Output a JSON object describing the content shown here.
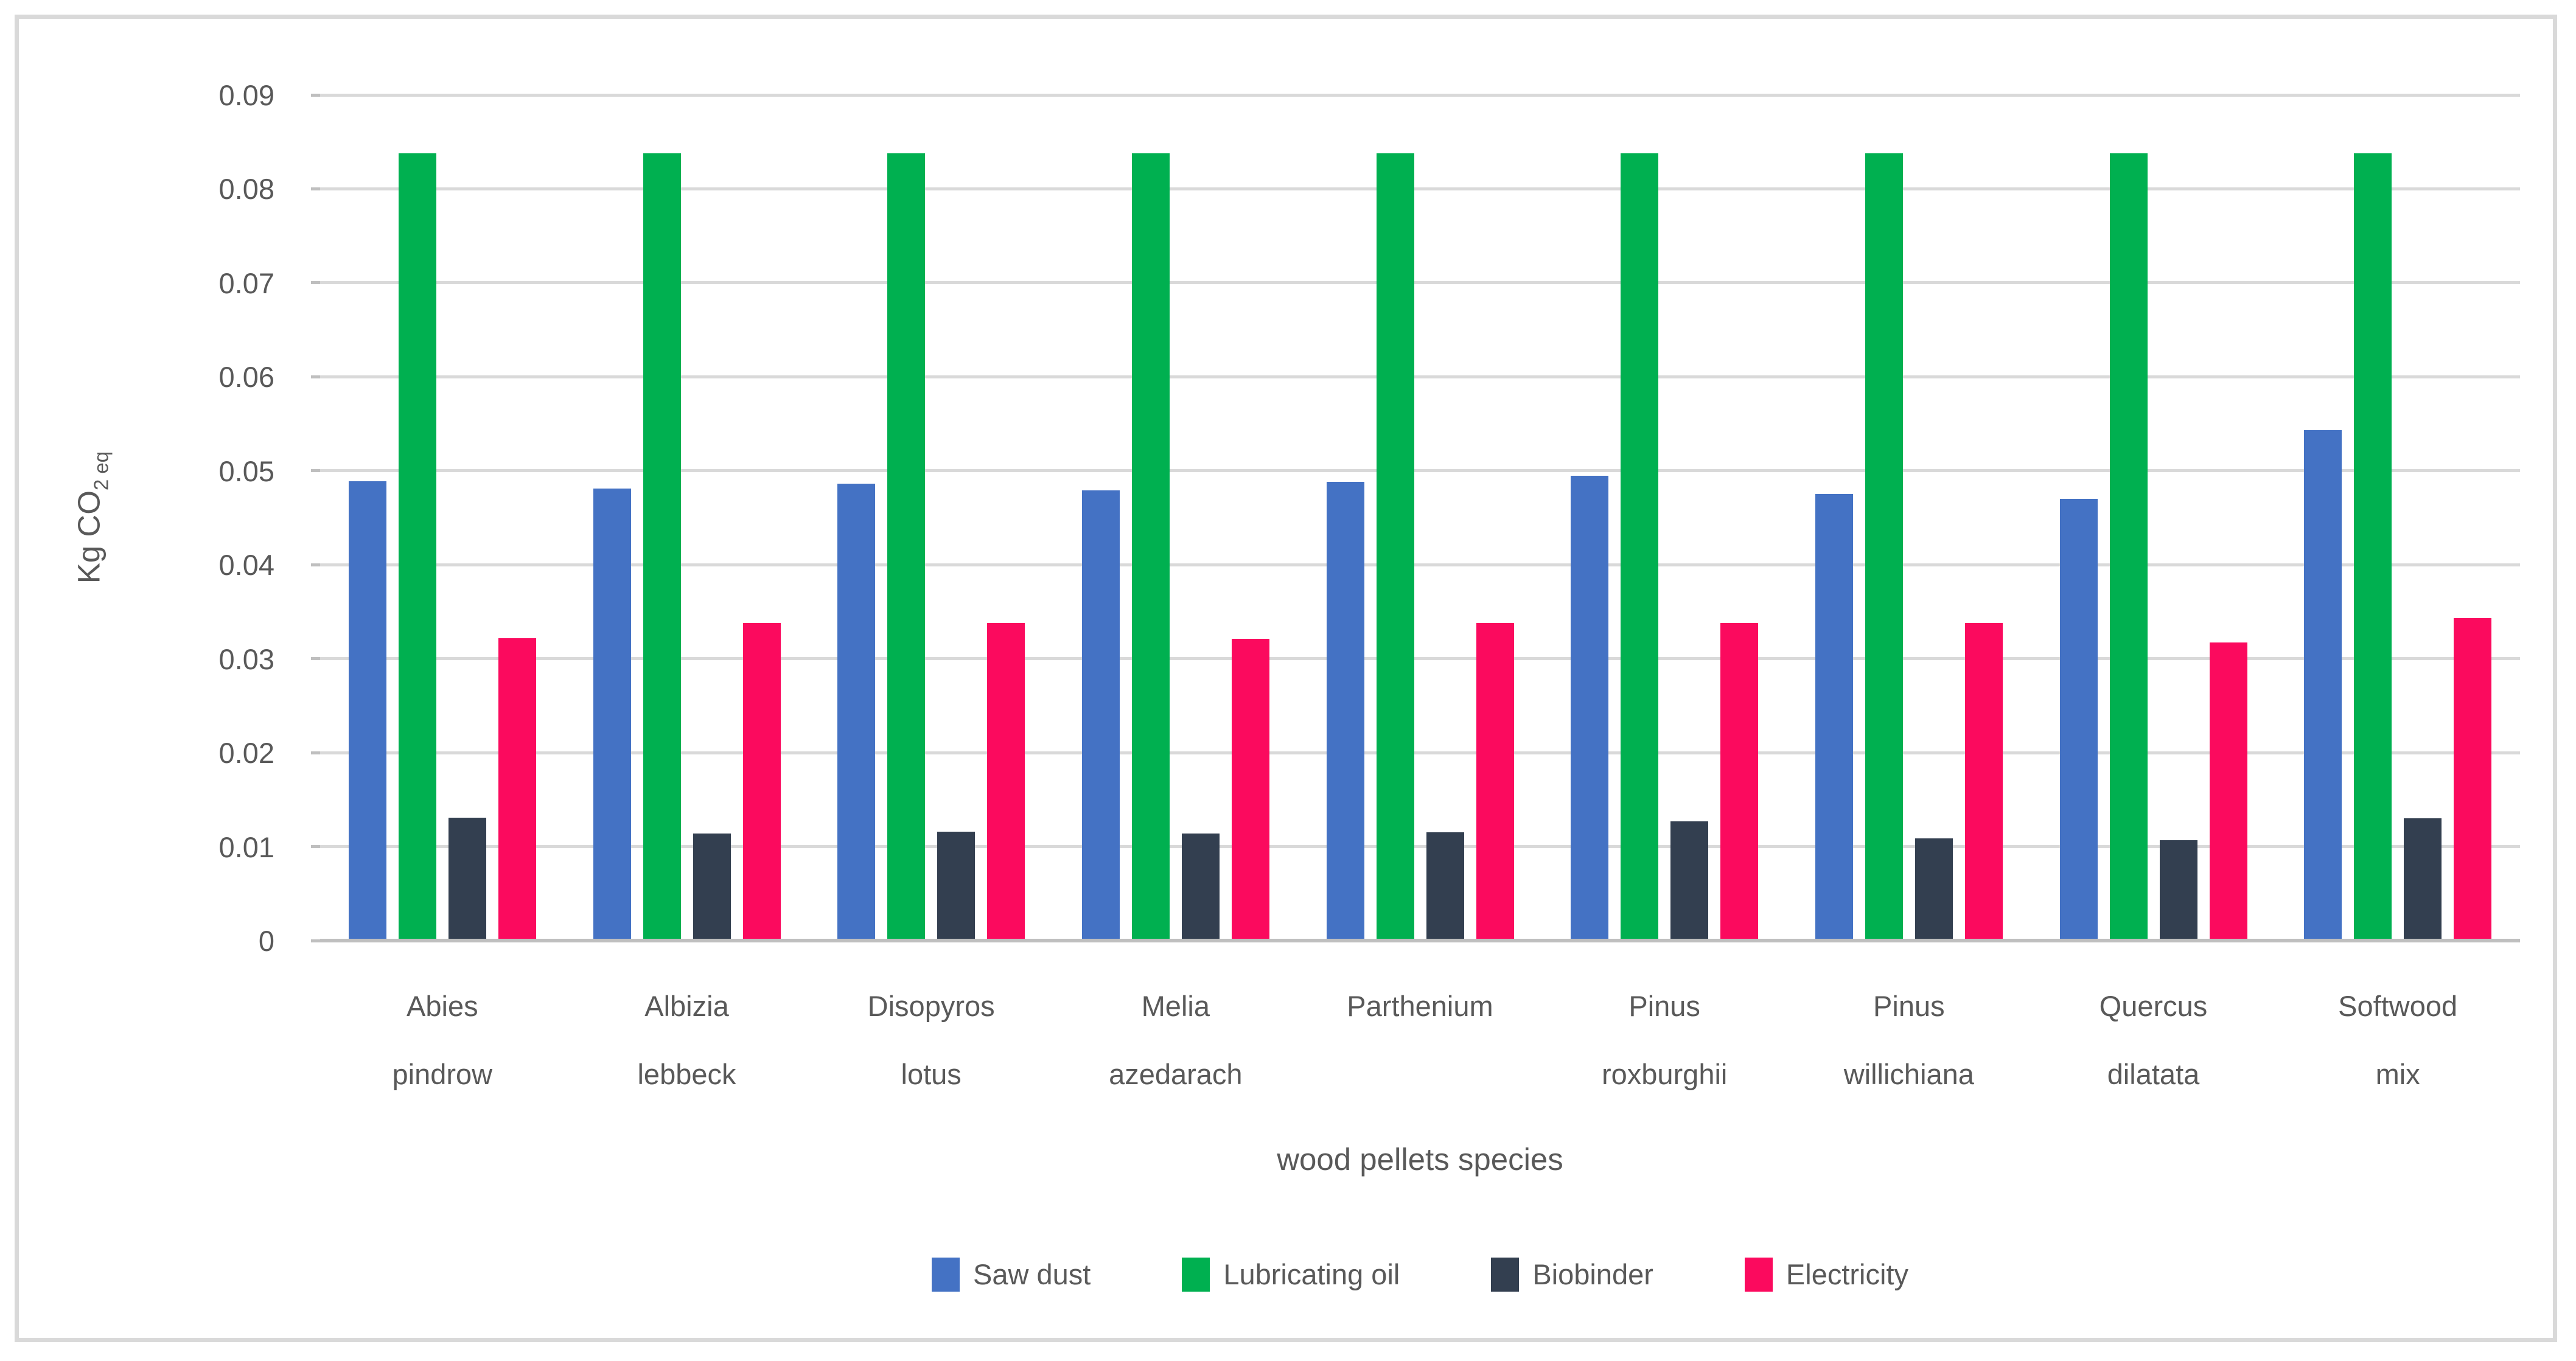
{
  "chart_data": {
    "type": "bar",
    "title": "",
    "xlabel": "wood pellets species",
    "ylabel": "Kg CO2 eq",
    "ylabel_main": "Kg CO",
    "ylabel_sub": "2 eq",
    "ylim": [
      0,
      0.09
    ],
    "grid": true,
    "legend_position": "bottom",
    "categories": [
      "Abies pindrow",
      "Albizia lebbeck",
      "Disopyros lotus",
      "Melia azedarach",
      "Parthenium",
      "Pinus roxburghii",
      "Pinus willichiana",
      "Quercus dilatata",
      "Softwood mix"
    ],
    "category_label_lines": [
      [
        "Abies",
        "pindrow"
      ],
      [
        "Albizia",
        "lebbeck"
      ],
      [
        "Disopyros",
        "lotus"
      ],
      [
        "Melia",
        "azedarach"
      ],
      [
        "Parthenium"
      ],
      [
        "Pinus",
        "roxburghii"
      ],
      [
        "Pinus",
        "willichiana"
      ],
      [
        "Quercus",
        "dilatata"
      ],
      [
        "Softwood",
        "mix"
      ]
    ],
    "y_ticks": {
      "values": [
        0.09,
        0.08,
        0.07,
        0.06,
        0.05,
        0.04,
        0.03,
        0.02,
        0.01,
        0
      ],
      "labels": [
        "0.09",
        "0.08",
        "0.07",
        "0.06",
        "0.05",
        "0.04",
        "0.03",
        "0.02",
        "0.01",
        "0"
      ]
    },
    "series": [
      {
        "name": "Saw dust",
        "color": "#4472c4",
        "values": [
          0.0489,
          0.0481,
          0.0486,
          0.0479,
          0.0488,
          0.0495,
          0.0475,
          0.047,
          0.0543
        ]
      },
      {
        "name": "Lubricating oil",
        "color": "#00b050",
        "values": [
          0.0838,
          0.0838,
          0.0838,
          0.0838,
          0.0838,
          0.0838,
          0.0838,
          0.0838,
          0.0838
        ]
      },
      {
        "name": "Biobinder",
        "color": "#333f50",
        "values": [
          0.0131,
          0.0114,
          0.0116,
          0.0114,
          0.0115,
          0.0127,
          0.0109,
          0.0107,
          0.013
        ]
      },
      {
        "name": "Electricity",
        "color": "#fb0a5e",
        "values": [
          0.0322,
          0.0338,
          0.0338,
          0.0321,
          0.0338,
          0.0338,
          0.0338,
          0.0317,
          0.0343
        ]
      }
    ],
    "colors": {
      "gridline": "#d9d9d9",
      "axis_line": "#bfbfbf",
      "text": "#595959"
    }
  }
}
